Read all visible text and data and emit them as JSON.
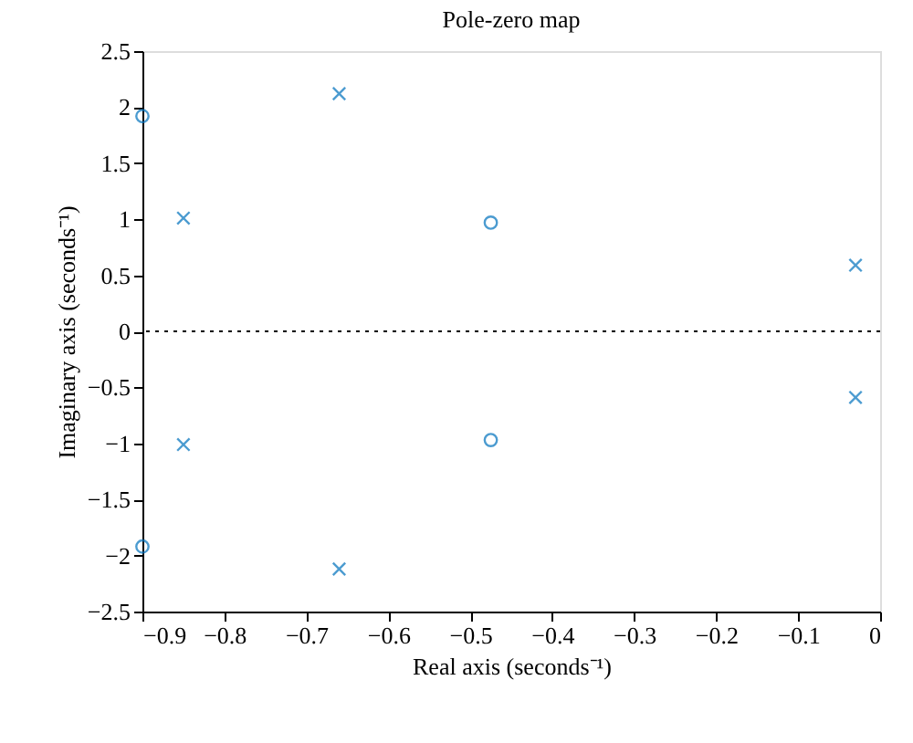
{
  "chart_data": {
    "type": "scatter",
    "title": "Pole-zero map",
    "xlabel": "Real axis (seconds⁻¹)",
    "ylabel": "Imaginary axis (seconds⁻¹)",
    "xlim": [
      -0.9,
      0
    ],
    "xticks": [
      -0.9,
      -0.8,
      -0.7,
      -0.6,
      -0.5,
      -0.4,
      -0.3,
      -0.2,
      -0.1,
      0
    ],
    "ylim": [
      -2.5,
      2.5
    ],
    "yticks": [
      -2.5,
      -2,
      -1.5,
      -1,
      -0.5,
      0,
      0.5,
      1,
      1.5,
      2,
      2.5
    ],
    "grid": false,
    "legend": false,
    "series": [
      {
        "color": "#0072bd",
        "marker": "circle",
        "x": [
          -0.9,
          -0.9,
          -0.475,
          -0.475
        ],
        "values": [
          1.92,
          -1.92,
          0.97,
          -0.97
        ]
      },
      {
        "color": "#0072bd",
        "marker": "cross",
        "x": [
          -0.85,
          -0.85,
          -0.66,
          -0.66,
          -0.03,
          -0.03
        ],
        "values": [
          1.01,
          -1.01,
          2.12,
          -2.12,
          0.59,
          -0.59
        ]
      }
    ],
    "ref_lines": [
      {
        "axis": "y",
        "value": 0,
        "color": "#000000",
        "line_style": "dotted"
      }
    ]
  }
}
